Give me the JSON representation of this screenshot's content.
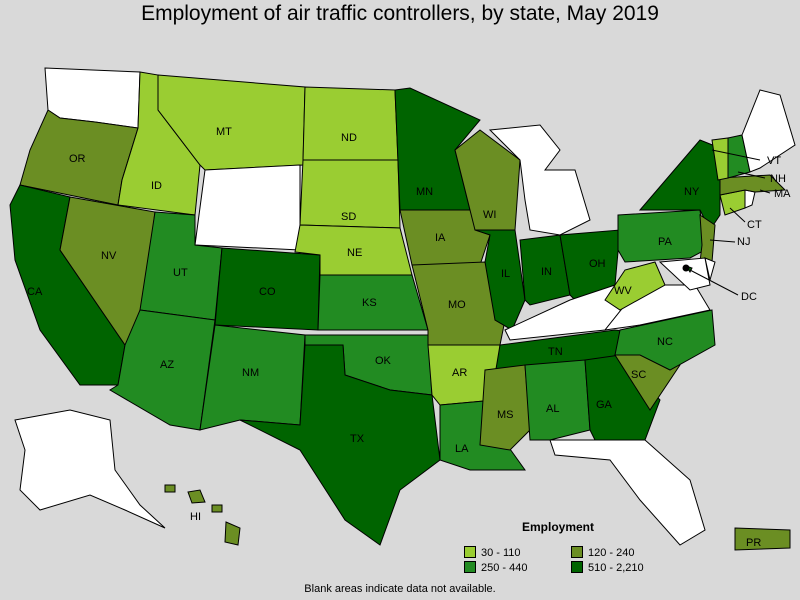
{
  "title": "Employment of air traffic controllers, by state, May 2019",
  "legend": {
    "title": "Employment",
    "items": [
      {
        "label": "30 - 110",
        "color": "#9acd32"
      },
      {
        "label": "120 - 240",
        "color": "#6b8e23"
      },
      {
        "label": "250 - 440",
        "color": "#228b22"
      },
      {
        "label": "510 - 2,210",
        "color": "#006400"
      }
    ]
  },
  "footnote": "Blank areas indicate data not available.",
  "colors": {
    "background": "#d9d9d9",
    "blank": "#ffffff",
    "c1": "#9acd32",
    "c2": "#6b8e23",
    "c3": "#228b22",
    "c4": "#006400"
  },
  "states": [
    {
      "code": "WA",
      "label": "",
      "class": "blank"
    },
    {
      "code": "OR",
      "label": "OR",
      "class": "c2"
    },
    {
      "code": "CA",
      "label": "CA",
      "class": "c4"
    },
    {
      "code": "ID",
      "label": "ID",
      "class": "c1"
    },
    {
      "code": "NV",
      "label": "NV",
      "class": "c2"
    },
    {
      "code": "MT",
      "label": "MT",
      "class": "c1"
    },
    {
      "code": "WY",
      "label": "",
      "class": "blank"
    },
    {
      "code": "UT",
      "label": "UT",
      "class": "c3"
    },
    {
      "code": "AZ",
      "label": "AZ",
      "class": "c3"
    },
    {
      "code": "CO",
      "label": "CO",
      "class": "c4"
    },
    {
      "code": "NM",
      "label": "NM",
      "class": "c3"
    },
    {
      "code": "ND",
      "label": "ND",
      "class": "c1"
    },
    {
      "code": "SD",
      "label": "SD",
      "class": "c1"
    },
    {
      "code": "NE",
      "label": "NE",
      "class": "c1"
    },
    {
      "code": "KS",
      "label": "KS",
      "class": "c3"
    },
    {
      "code": "OK",
      "label": "OK",
      "class": "c3"
    },
    {
      "code": "TX",
      "label": "TX",
      "class": "c4"
    },
    {
      "code": "MN",
      "label": "MN",
      "class": "c4"
    },
    {
      "code": "IA",
      "label": "IA",
      "class": "c2"
    },
    {
      "code": "MO",
      "label": "MO",
      "class": "c2"
    },
    {
      "code": "AR",
      "label": "AR",
      "class": "c1"
    },
    {
      "code": "LA",
      "label": "LA",
      "class": "c3"
    },
    {
      "code": "WI",
      "label": "WI",
      "class": "c2"
    },
    {
      "code": "IL",
      "label": "IL",
      "class": "c4"
    },
    {
      "code": "MI",
      "label": "",
      "class": "blank"
    },
    {
      "code": "IN",
      "label": "IN",
      "class": "c4"
    },
    {
      "code": "OH",
      "label": "OH",
      "class": "c4"
    },
    {
      "code": "KY",
      "label": "",
      "class": "blank"
    },
    {
      "code": "TN",
      "label": "TN",
      "class": "c4"
    },
    {
      "code": "MS",
      "label": "MS",
      "class": "c2"
    },
    {
      "code": "AL",
      "label": "AL",
      "class": "c3"
    },
    {
      "code": "GA",
      "label": "GA",
      "class": "c4"
    },
    {
      "code": "FL",
      "label": "",
      "class": "blank"
    },
    {
      "code": "SC",
      "label": "SC",
      "class": "c2"
    },
    {
      "code": "NC",
      "label": "NC",
      "class": "c3"
    },
    {
      "code": "VA",
      "label": "",
      "class": "blank"
    },
    {
      "code": "WV",
      "label": "WV",
      "class": "c1"
    },
    {
      "code": "PA",
      "label": "PA",
      "class": "c3"
    },
    {
      "code": "NY",
      "label": "NY",
      "class": "c4"
    },
    {
      "code": "NJ",
      "label": "NJ",
      "class": "c2"
    },
    {
      "code": "DE",
      "label": "",
      "class": "blank"
    },
    {
      "code": "MD",
      "label": "",
      "class": "blank"
    },
    {
      "code": "DC",
      "label": "DC",
      "class": "c4"
    },
    {
      "code": "CT",
      "label": "CT",
      "class": "c1"
    },
    {
      "code": "RI",
      "label": "",
      "class": "blank"
    },
    {
      "code": "MA",
      "label": "MA",
      "class": "c2"
    },
    {
      "code": "VT",
      "label": "VT",
      "class": "c1"
    },
    {
      "code": "NH",
      "label": "NH",
      "class": "c3"
    },
    {
      "code": "ME",
      "label": "",
      "class": "blank"
    },
    {
      "code": "AK",
      "label": "",
      "class": "blank"
    },
    {
      "code": "HI",
      "label": "HI",
      "class": "c2"
    },
    {
      "code": "PR",
      "label": "PR",
      "class": "c2"
    }
  ]
}
